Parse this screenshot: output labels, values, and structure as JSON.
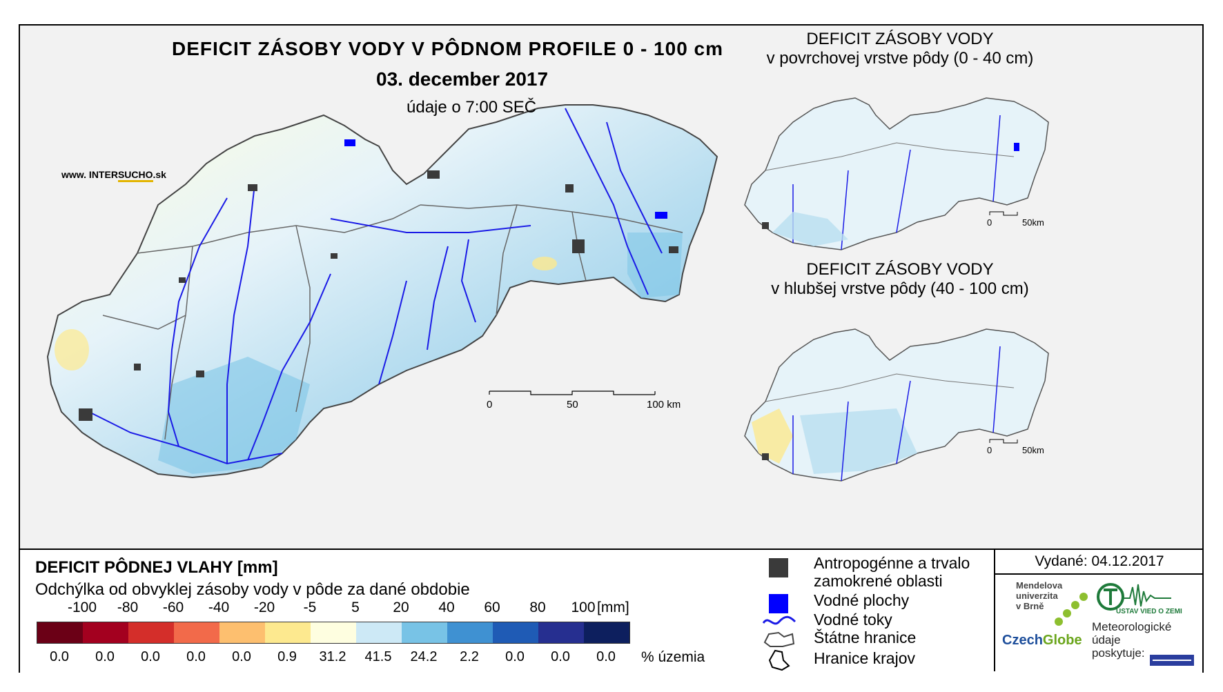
{
  "title": "DEFICIT ZÁSOBY VODY V PÔDNOM PROFILE 0 - 100 cm",
  "date": "03. december 2017",
  "time_note": "údaje o 7:00 SEČ",
  "website": {
    "prefix": "www. INTER",
    "highlight": "SUCHO",
    "suffix": ".sk"
  },
  "inset_top": {
    "line1": "DEFICIT ZÁSOBY VODY",
    "line2": "v povrchovej vrstve pôdy (0 - 40 cm)"
  },
  "inset_bottom": {
    "line1": "DEFICIT ZÁSOBY VODY",
    "line2": "v hlubšej vrstve pôdy (40 - 100 cm)"
  },
  "scale_main": {
    "l0": "0",
    "l1": "50",
    "l2": "100 km"
  },
  "scale_inset": {
    "l0": "0",
    "l1": "50km"
  },
  "legend": {
    "title": "DEFICIT PÔDNEJ VLAHY [mm]",
    "subtitle": "Odchýlka od obvyklej zásoby vody v pôde za dané obdobie",
    "unit_mm": "[mm]",
    "unit_pct": "% územia",
    "breaks": [
      "-100",
      "-80",
      "-60",
      "-40",
      "-20",
      "-5",
      "5",
      "20",
      "40",
      "60",
      "80",
      "100"
    ],
    "colors": [
      "#6b0016",
      "#a3001f",
      "#d42e2a",
      "#f26a4a",
      "#fdbf6f",
      "#fde98f",
      "#fefee0",
      "#cde9f6",
      "#78c3e6",
      "#3f91d2",
      "#1f5bb5",
      "#262f90",
      "#0d1f5e"
    ],
    "percent": [
      "0.0",
      "0.0",
      "0.0",
      "0.0",
      "0.0",
      "0.9",
      "31.2",
      "41.5",
      "24.2",
      "2.2",
      "0.0",
      "0.0",
      "0.0"
    ]
  },
  "map_legend": {
    "antro": "Antropogénne a trvalo",
    "antro2": "zamokrené oblasti",
    "water_areas": "Vodné plochy",
    "rivers": "Vodné toky",
    "state_border": "Štátne hranice",
    "region_border": "Hranice krajov"
  },
  "issued": "Vydané: 04.12.2017",
  "logos": {
    "mendel1": "Mendelova",
    "mendel2": "univerzita",
    "mendel3": "v Brně",
    "czech": "Czech",
    "globe": "Globe",
    "ustav": "ÚSTAV VIED O ZEMI",
    "meteo1": "Meteorologické",
    "meteo2": "údaje",
    "meteo3": "poskytuje:"
  },
  "colors": {
    "water": "#0000ff",
    "antro": "#3a3a3a",
    "border": "#555555"
  }
}
